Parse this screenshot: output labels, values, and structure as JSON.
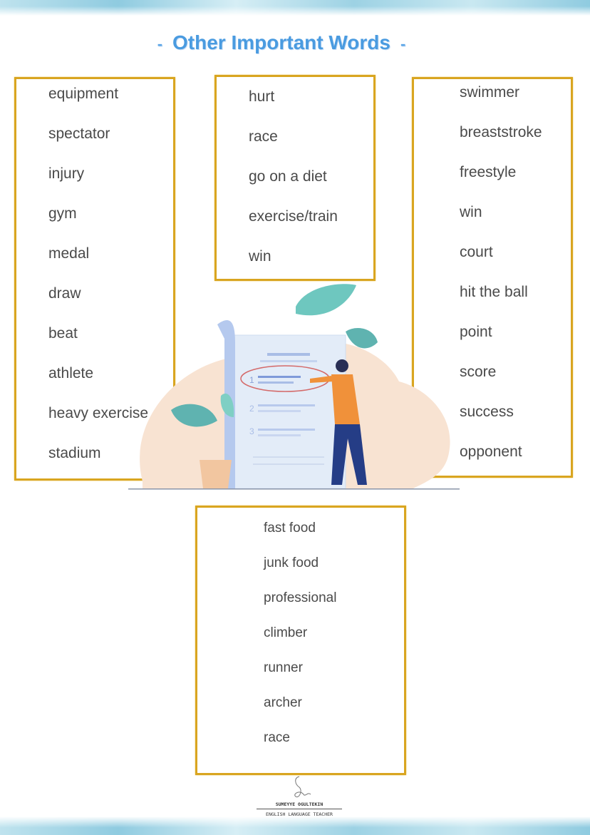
{
  "title": {
    "text": "Other Important Words",
    "dash": "-"
  },
  "columns": {
    "left": [
      "equipment",
      "spectator",
      "injury",
      "gym",
      "medal",
      "draw",
      "beat",
      "athlete",
      "heavy exercise",
      "stadium"
    ],
    "middle": [
      "hurt",
      "race",
      "go on a diet",
      "exercise/train",
      "win"
    ],
    "right": [
      "swimmer",
      "breaststroke",
      "freestyle",
      "win",
      "court",
      "hit the ball",
      "point",
      "score",
      "success",
      "opponent"
    ],
    "bottom": [
      "fast food",
      "junk food",
      "professional",
      "climber",
      "runner",
      "archer",
      "race"
    ]
  },
  "illustration": {
    "list_numbers": [
      "1",
      "2",
      "3"
    ]
  },
  "signature": {
    "name": "SUMEYYE OGULTEKIN",
    "role": "ENGLISH LANGUAGE TEACHER",
    "initials": "Su"
  },
  "colors": {
    "border": "#d9a520",
    "title": "#4a9be0",
    "text": "#4a4a4a"
  }
}
